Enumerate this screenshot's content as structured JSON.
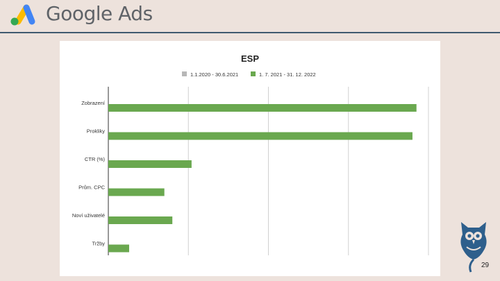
{
  "header": {
    "brand": "Google Ads",
    "brand_colors": {
      "blue": "#4285F4",
      "yellow": "#FBBC04",
      "green": "#34A853",
      "text": "#5f6368"
    }
  },
  "slide": {
    "page_number": "29"
  },
  "chart_data": {
    "type": "bar",
    "orientation": "horizontal",
    "title": "ESP",
    "categories": [
      "Zobrazení",
      "Prokliky",
      "CTR (%)",
      "Prům. CPC",
      "Noví uživatelé",
      "Tržby"
    ],
    "series": [
      {
        "name": "1.1.2020 - 30.6.2021",
        "color": "#b7b7b7",
        "values": [
          0,
          0,
          0,
          0,
          0,
          0
        ]
      },
      {
        "name": "1. 7. 2021 - 31. 12. 2022",
        "color": "#6aa84f",
        "values": [
          3850,
          3800,
          1040,
          700,
          800,
          260
        ]
      }
    ],
    "xlim": [
      0,
      4000
    ],
    "x_gridlines": [
      0,
      1000,
      2000,
      3000,
      4000
    ],
    "xtick_labels_visible": false,
    "grid": true,
    "legend_position": "top"
  }
}
